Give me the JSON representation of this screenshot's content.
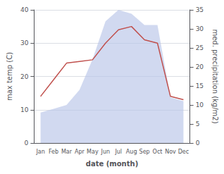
{
  "chart_data": {
    "type": "line",
    "categories": [
      "Jan",
      "Feb",
      "Mar",
      "Apr",
      "May",
      "Jun",
      "Jul",
      "Aug",
      "Sep",
      "Oct",
      "Nov",
      "Dec"
    ],
    "series": [
      {
        "type": "area",
        "axis": "y2",
        "color": "#b8c4e8",
        "values": [
          8,
          9,
          10,
          14,
          22,
          32,
          35,
          34,
          31,
          31,
          12,
          11
        ]
      },
      {
        "type": "line",
        "color": "#c0504d",
        "values": [
          14,
          19,
          24,
          24.5,
          25,
          30,
          34,
          35,
          31,
          30,
          14,
          13
        ]
      }
    ],
    "xlabel": "date (month)",
    "ylabel": "max temp (C)",
    "y2label": "med. precipitation (kg/m2)",
    "ylim": [
      0,
      40
    ],
    "yticks": [
      0,
      10,
      20,
      30,
      40
    ],
    "y2lim": [
      0,
      35
    ],
    "y2ticks": [
      0,
      5,
      10,
      15,
      20,
      25,
      30,
      35
    ],
    "grid": true
  }
}
